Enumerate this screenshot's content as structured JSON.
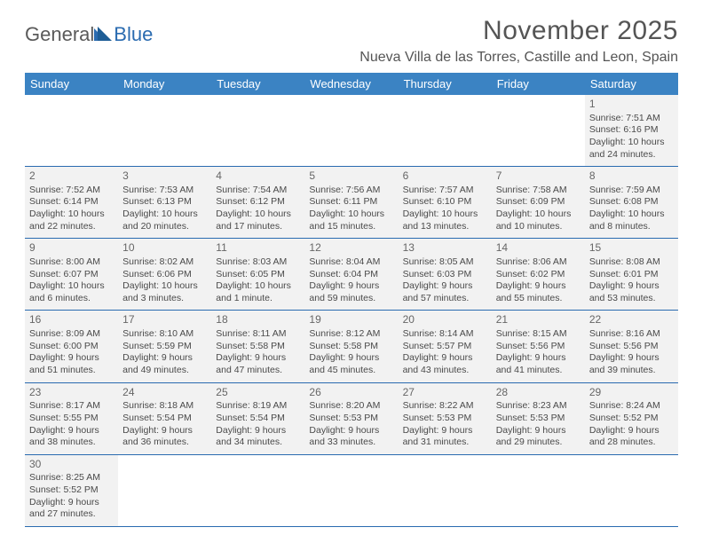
{
  "logo": {
    "text1": "General",
    "text2": "Blue"
  },
  "title": "November 2025",
  "location": "Nueva Villa de las Torres, Castille and Leon, Spain",
  "colors": {
    "header_bg": "#3b83c3",
    "header_text": "#ffffff",
    "rule": "#2a6bb0",
    "cell_bg": "#f2f2f2",
    "text": "#4a4a4a",
    "title_text": "#555555",
    "logo_blue": "#2a6bb0",
    "logo_gray": "#5a5a5a"
  },
  "weekdays": [
    "Sunday",
    "Monday",
    "Tuesday",
    "Wednesday",
    "Thursday",
    "Friday",
    "Saturday"
  ],
  "grid": [
    [
      null,
      null,
      null,
      null,
      null,
      null,
      {
        "n": "1",
        "sr": "Sunrise: 7:51 AM",
        "ss": "Sunset: 6:16 PM",
        "d1": "Daylight: 10 hours",
        "d2": "and 24 minutes."
      }
    ],
    [
      {
        "n": "2",
        "sr": "Sunrise: 7:52 AM",
        "ss": "Sunset: 6:14 PM",
        "d1": "Daylight: 10 hours",
        "d2": "and 22 minutes."
      },
      {
        "n": "3",
        "sr": "Sunrise: 7:53 AM",
        "ss": "Sunset: 6:13 PM",
        "d1": "Daylight: 10 hours",
        "d2": "and 20 minutes."
      },
      {
        "n": "4",
        "sr": "Sunrise: 7:54 AM",
        "ss": "Sunset: 6:12 PM",
        "d1": "Daylight: 10 hours",
        "d2": "and 17 minutes."
      },
      {
        "n": "5",
        "sr": "Sunrise: 7:56 AM",
        "ss": "Sunset: 6:11 PM",
        "d1": "Daylight: 10 hours",
        "d2": "and 15 minutes."
      },
      {
        "n": "6",
        "sr": "Sunrise: 7:57 AM",
        "ss": "Sunset: 6:10 PM",
        "d1": "Daylight: 10 hours",
        "d2": "and 13 minutes."
      },
      {
        "n": "7",
        "sr": "Sunrise: 7:58 AM",
        "ss": "Sunset: 6:09 PM",
        "d1": "Daylight: 10 hours",
        "d2": "and 10 minutes."
      },
      {
        "n": "8",
        "sr": "Sunrise: 7:59 AM",
        "ss": "Sunset: 6:08 PM",
        "d1": "Daylight: 10 hours",
        "d2": "and 8 minutes."
      }
    ],
    [
      {
        "n": "9",
        "sr": "Sunrise: 8:00 AM",
        "ss": "Sunset: 6:07 PM",
        "d1": "Daylight: 10 hours",
        "d2": "and 6 minutes."
      },
      {
        "n": "10",
        "sr": "Sunrise: 8:02 AM",
        "ss": "Sunset: 6:06 PM",
        "d1": "Daylight: 10 hours",
        "d2": "and 3 minutes."
      },
      {
        "n": "11",
        "sr": "Sunrise: 8:03 AM",
        "ss": "Sunset: 6:05 PM",
        "d1": "Daylight: 10 hours",
        "d2": "and 1 minute."
      },
      {
        "n": "12",
        "sr": "Sunrise: 8:04 AM",
        "ss": "Sunset: 6:04 PM",
        "d1": "Daylight: 9 hours",
        "d2": "and 59 minutes."
      },
      {
        "n": "13",
        "sr": "Sunrise: 8:05 AM",
        "ss": "Sunset: 6:03 PM",
        "d1": "Daylight: 9 hours",
        "d2": "and 57 minutes."
      },
      {
        "n": "14",
        "sr": "Sunrise: 8:06 AM",
        "ss": "Sunset: 6:02 PM",
        "d1": "Daylight: 9 hours",
        "d2": "and 55 minutes."
      },
      {
        "n": "15",
        "sr": "Sunrise: 8:08 AM",
        "ss": "Sunset: 6:01 PM",
        "d1": "Daylight: 9 hours",
        "d2": "and 53 minutes."
      }
    ],
    [
      {
        "n": "16",
        "sr": "Sunrise: 8:09 AM",
        "ss": "Sunset: 6:00 PM",
        "d1": "Daylight: 9 hours",
        "d2": "and 51 minutes."
      },
      {
        "n": "17",
        "sr": "Sunrise: 8:10 AM",
        "ss": "Sunset: 5:59 PM",
        "d1": "Daylight: 9 hours",
        "d2": "and 49 minutes."
      },
      {
        "n": "18",
        "sr": "Sunrise: 8:11 AM",
        "ss": "Sunset: 5:58 PM",
        "d1": "Daylight: 9 hours",
        "d2": "and 47 minutes."
      },
      {
        "n": "19",
        "sr": "Sunrise: 8:12 AM",
        "ss": "Sunset: 5:58 PM",
        "d1": "Daylight: 9 hours",
        "d2": "and 45 minutes."
      },
      {
        "n": "20",
        "sr": "Sunrise: 8:14 AM",
        "ss": "Sunset: 5:57 PM",
        "d1": "Daylight: 9 hours",
        "d2": "and 43 minutes."
      },
      {
        "n": "21",
        "sr": "Sunrise: 8:15 AM",
        "ss": "Sunset: 5:56 PM",
        "d1": "Daylight: 9 hours",
        "d2": "and 41 minutes."
      },
      {
        "n": "22",
        "sr": "Sunrise: 8:16 AM",
        "ss": "Sunset: 5:56 PM",
        "d1": "Daylight: 9 hours",
        "d2": "and 39 minutes."
      }
    ],
    [
      {
        "n": "23",
        "sr": "Sunrise: 8:17 AM",
        "ss": "Sunset: 5:55 PM",
        "d1": "Daylight: 9 hours",
        "d2": "and 38 minutes."
      },
      {
        "n": "24",
        "sr": "Sunrise: 8:18 AM",
        "ss": "Sunset: 5:54 PM",
        "d1": "Daylight: 9 hours",
        "d2": "and 36 minutes."
      },
      {
        "n": "25",
        "sr": "Sunrise: 8:19 AM",
        "ss": "Sunset: 5:54 PM",
        "d1": "Daylight: 9 hours",
        "d2": "and 34 minutes."
      },
      {
        "n": "26",
        "sr": "Sunrise: 8:20 AM",
        "ss": "Sunset: 5:53 PM",
        "d1": "Daylight: 9 hours",
        "d2": "and 33 minutes."
      },
      {
        "n": "27",
        "sr": "Sunrise: 8:22 AM",
        "ss": "Sunset: 5:53 PM",
        "d1": "Daylight: 9 hours",
        "d2": "and 31 minutes."
      },
      {
        "n": "28",
        "sr": "Sunrise: 8:23 AM",
        "ss": "Sunset: 5:53 PM",
        "d1": "Daylight: 9 hours",
        "d2": "and 29 minutes."
      },
      {
        "n": "29",
        "sr": "Sunrise: 8:24 AM",
        "ss": "Sunset: 5:52 PM",
        "d1": "Daylight: 9 hours",
        "d2": "and 28 minutes."
      }
    ],
    [
      {
        "n": "30",
        "sr": "Sunrise: 8:25 AM",
        "ss": "Sunset: 5:52 PM",
        "d1": "Daylight: 9 hours",
        "d2": "and 27 minutes."
      },
      null,
      null,
      null,
      null,
      null,
      null
    ]
  ]
}
